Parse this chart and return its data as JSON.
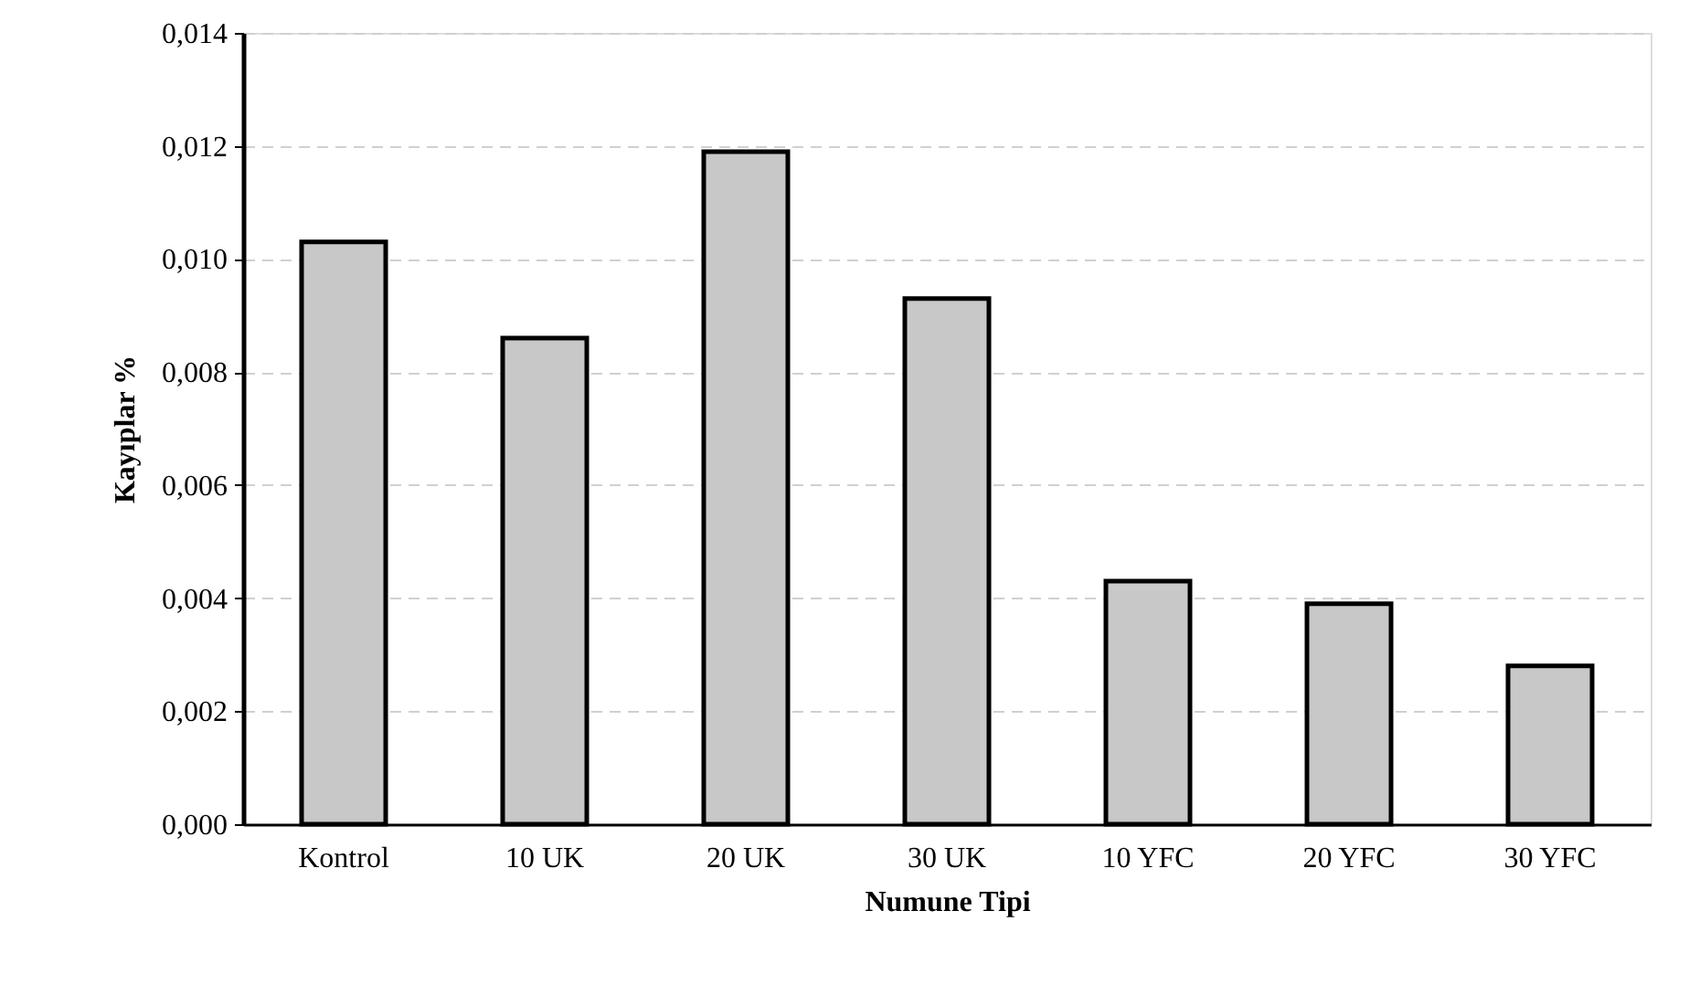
{
  "chart_data": {
    "type": "bar",
    "xlabel": "Numune Tipi",
    "ylabel": "Kayıplar %",
    "categories": [
      "Kontrol",
      "10 UK",
      "20 UK",
      "30 UK",
      "10 YFC",
      "20 YFC",
      "30 YFC"
    ],
    "values": [
      0.0103,
      0.0086,
      0.0119,
      0.0093,
      0.0043,
      0.0039,
      0.0028
    ],
    "color": "#c8c8c8",
    "ylim": [
      0,
      0.014
    ],
    "yticks": [
      {
        "value": 0,
        "label": "0,000"
      },
      {
        "value": 0.002,
        "label": "0,002"
      },
      {
        "value": 0.004,
        "label": "0,004"
      },
      {
        "value": 0.006,
        "label": "0,006"
      },
      {
        "value": 0.008,
        "label": "0,008"
      },
      {
        "value": 0.01,
        "label": "0,010"
      },
      {
        "value": 0.012,
        "label": "0,012"
      },
      {
        "value": 0.014,
        "label": "0,014"
      }
    ],
    "grid": "y"
  }
}
